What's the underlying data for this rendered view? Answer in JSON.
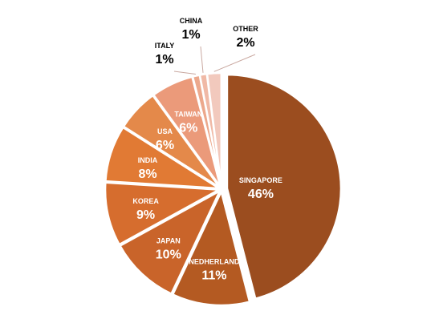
{
  "chart_data": {
    "type": "pie",
    "title": "",
    "legend": "none",
    "exploded": true,
    "slices": [
      {
        "label": "SINGAPORE",
        "value": 46,
        "pct_label": "46%",
        "color": "#9b4d1f",
        "text_color": "#ffffff",
        "label_outside": false
      },
      {
        "label": "NEDHERLAND",
        "value": 11,
        "pct_label": "11%",
        "color": "#b45a22",
        "text_color": "#ffffff",
        "label_outside": false
      },
      {
        "label": "JAPAN",
        "value": 10,
        "pct_label": "10%",
        "color": "#c9642a",
        "text_color": "#ffffff",
        "label_outside": false
      },
      {
        "label": "KOREA",
        "value": 9,
        "pct_label": "9%",
        "color": "#d66d2e",
        "text_color": "#ffffff",
        "label_outside": false
      },
      {
        "label": "INDIA",
        "value": 8,
        "pct_label": "8%",
        "color": "#e17a34",
        "text_color": "#ffffff",
        "label_outside": false
      },
      {
        "label": "USA",
        "value": 6,
        "pct_label": "6%",
        "color": "#e4894a",
        "text_color": "#ffffff",
        "label_outside": false
      },
      {
        "label": "TAIWAN",
        "value": 6,
        "pct_label": "6%",
        "color": "#eb9a7a",
        "text_color": "#ffffff",
        "label_outside": false
      },
      {
        "label": "ITALY",
        "value": 1,
        "pct_label": "1%",
        "color": "#eca88c",
        "text_color": "#000000",
        "label_outside": true
      },
      {
        "label": "CHINA",
        "value": 1,
        "pct_label": "1%",
        "color": "#f0b9a6",
        "text_color": "#000000",
        "label_outside": true
      },
      {
        "label": "OTHER",
        "value": 2,
        "pct_label": "2%",
        "color": "#f2c9bd",
        "text_color": "#000000",
        "label_outside": true
      }
    ]
  }
}
